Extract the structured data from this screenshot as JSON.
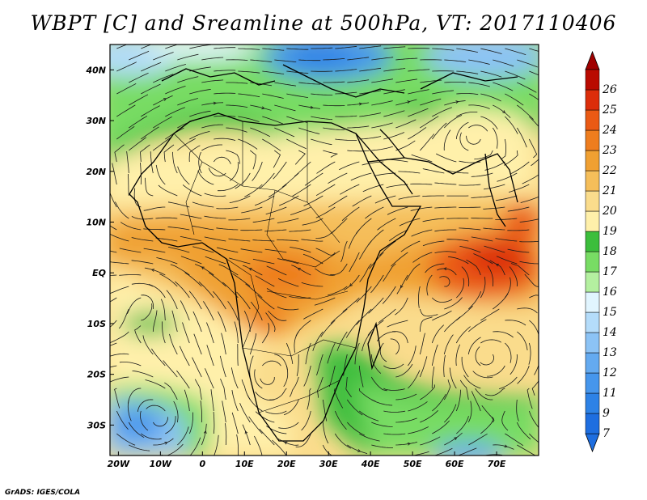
{
  "title": "WBPT [C] and Sreamline at 500hPa, VT: 2017110406",
  "credit": "GrADS: IGES/COLA",
  "map": {
    "lon_range": [
      -22,
      80
    ],
    "lat_range": [
      -36,
      45
    ],
    "lon_ticks": [
      {
        "value": -20,
        "label": "20W"
      },
      {
        "value": -10,
        "label": "10W"
      },
      {
        "value": 0,
        "label": "0"
      },
      {
        "value": 10,
        "label": "10E"
      },
      {
        "value": 20,
        "label": "20E"
      },
      {
        "value": 30,
        "label": "30E"
      },
      {
        "value": 40,
        "label": "40E"
      },
      {
        "value": 50,
        "label": "50E"
      },
      {
        "value": 60,
        "label": "60E"
      },
      {
        "value": 70,
        "label": "70E"
      }
    ],
    "lat_ticks": [
      {
        "value": 40,
        "label": "40N"
      },
      {
        "value": 30,
        "label": "30N"
      },
      {
        "value": 20,
        "label": "20N"
      },
      {
        "value": 10,
        "label": "10N"
      },
      {
        "value": 0,
        "label": "EQ"
      },
      {
        "value": -10,
        "label": "10S"
      },
      {
        "value": -20,
        "label": "20S"
      },
      {
        "value": -30,
        "label": "30S"
      }
    ]
  },
  "colorbar": {
    "levels": [
      {
        "label": "7",
        "color": "#1e6ee0"
      },
      {
        "label": "9",
        "color": "#2d82e6"
      },
      {
        "label": "11",
        "color": "#4696ec"
      },
      {
        "label": "12",
        "color": "#64aaf0"
      },
      {
        "label": "13",
        "color": "#8cc3f5"
      },
      {
        "label": "14",
        "color": "#b4dcfa"
      },
      {
        "label": "15",
        "color": "#e1f5ff"
      },
      {
        "label": "16",
        "color": "#b4f0a0"
      },
      {
        "label": "17",
        "color": "#78dc64"
      },
      {
        "label": "18",
        "color": "#3cbe3c"
      },
      {
        "label": "19",
        "color": "#fff0aa"
      },
      {
        "label": "20",
        "color": "#fadc8c"
      },
      {
        "label": "21",
        "color": "#f5be5a"
      },
      {
        "label": "22",
        "color": "#f0a032"
      },
      {
        "label": "23",
        "color": "#ee7d1e"
      },
      {
        "label": "24",
        "color": "#ea5a14"
      },
      {
        "label": "25",
        "color": "#dc2d0a"
      },
      {
        "label": "26",
        "color": "#b90a00"
      }
    ],
    "max_arrow_color": "#a00000",
    "min_arrow_color": "#1e6ee0"
  }
}
